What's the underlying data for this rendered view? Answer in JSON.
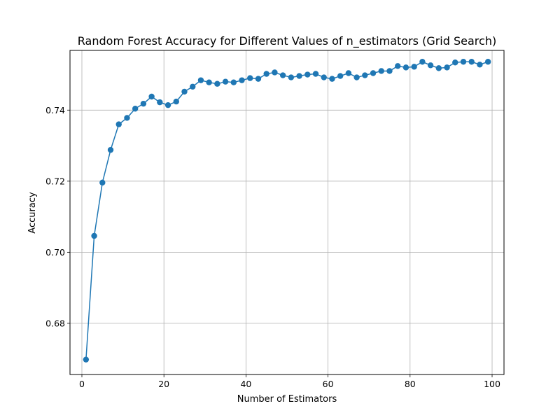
{
  "chart_data": {
    "type": "line",
    "title": "Random Forest Accuracy for Different Values of n_estimators (Grid Search)",
    "xlabel": "Number of Estimators",
    "ylabel": "Accuracy",
    "xlim": [
      -2.9,
      102.9
    ],
    "ylim": [
      0.6656,
      0.7568
    ],
    "xticks": [
      0,
      20,
      40,
      60,
      80,
      100
    ],
    "yticks": [
      0.68,
      0.7,
      0.72,
      0.74
    ],
    "xtick_labels": [
      "0",
      "20",
      "40",
      "60",
      "80",
      "100"
    ],
    "ytick_labels": [
      "0.68",
      "0.70",
      "0.72",
      "0.74"
    ],
    "grid": true,
    "marker": "circle",
    "color": "#1f77b4",
    "series": [
      {
        "x": [
          1,
          3,
          5,
          7,
          9,
          11,
          13,
          15,
          17,
          19,
          21,
          23,
          25,
          27,
          29,
          31,
          33,
          35,
          37,
          39,
          41,
          43,
          45,
          47,
          49,
          51,
          53,
          55,
          57,
          59,
          61,
          63,
          65,
          67,
          69,
          71,
          73,
          75,
          77,
          79,
          81,
          83,
          85,
          87,
          89,
          91,
          93,
          95,
          97,
          99
        ],
        "values": [
          0.6698,
          0.7046,
          0.7196,
          0.7288,
          0.736,
          0.7378,
          0.7404,
          0.7418,
          0.7438,
          0.7422,
          0.7414,
          0.7424,
          0.7452,
          0.7466,
          0.7484,
          0.7478,
          0.7474,
          0.748,
          0.7478,
          0.7484,
          0.749,
          0.7488,
          0.7502,
          0.7506,
          0.7498,
          0.7492,
          0.7496,
          0.75,
          0.7502,
          0.7492,
          0.7488,
          0.7496,
          0.7504,
          0.7492,
          0.7498,
          0.7504,
          0.751,
          0.751,
          0.7524,
          0.752,
          0.7522,
          0.7536,
          0.7526,
          0.7518,
          0.752,
          0.7534,
          0.7536,
          0.7536,
          0.7528,
          0.7536
        ]
      }
    ]
  }
}
